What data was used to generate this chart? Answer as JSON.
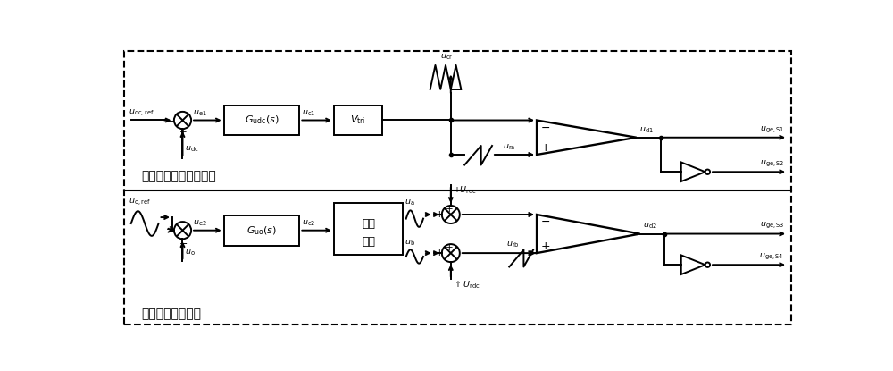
{
  "fig_width": 10.0,
  "fig_height": 4.15,
  "dpi": 100,
  "bg_color": "#ffffff",
  "top_label": "直流母线电压闭环控制",
  "bottom_label": "输出电压闭环控制",
  "lw": 1.4
}
